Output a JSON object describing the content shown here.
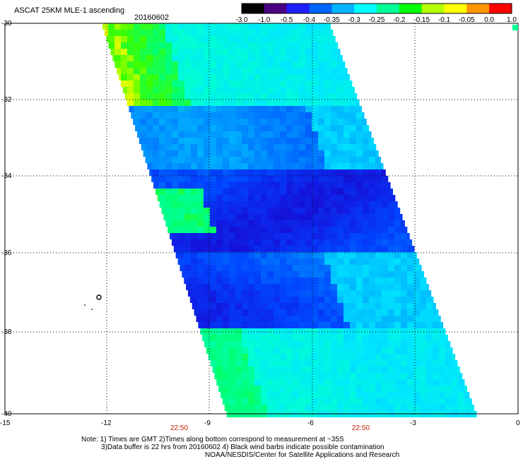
{
  "title": "ASCAT 25KM MLE-1 ascending",
  "date": "20160602",
  "colorbar": {
    "labels": [
      "-3.0",
      "-1.0",
      "-0.5",
      "-0.4",
      "-0.35",
      "-0.3",
      "-0.25",
      "-0.2",
      "-0.15",
      "-0.1",
      "-0.05",
      "0.0",
      "1.0"
    ],
    "colors": [
      "#000000",
      "#4b0082",
      "#1e1eff",
      "#0064ff",
      "#00b4ff",
      "#00ffff",
      "#00ff96",
      "#00ff00",
      "#b4ff00",
      "#ffff00",
      "#ff9600",
      "#ff0000"
    ]
  },
  "axes": {
    "lat_labels": [
      "-30",
      "-32",
      "-34",
      "-36",
      "-38",
      "-40"
    ],
    "lon_labels": [
      "-15",
      "-12",
      "-9",
      "-6",
      "-3",
      "0"
    ]
  },
  "times": [
    "22:50",
    "22:50"
  ],
  "notes": [
    "Note: 1) Times are GMT 2)Times along bottom correspond to measurement at ~35S",
    "3)Data buffer is 22 hrs from 20160602 4) Black wind barbs indicate possible contamination",
    "NOAA/NESDIS/Center for Satellite Applications and Research"
  ]
}
